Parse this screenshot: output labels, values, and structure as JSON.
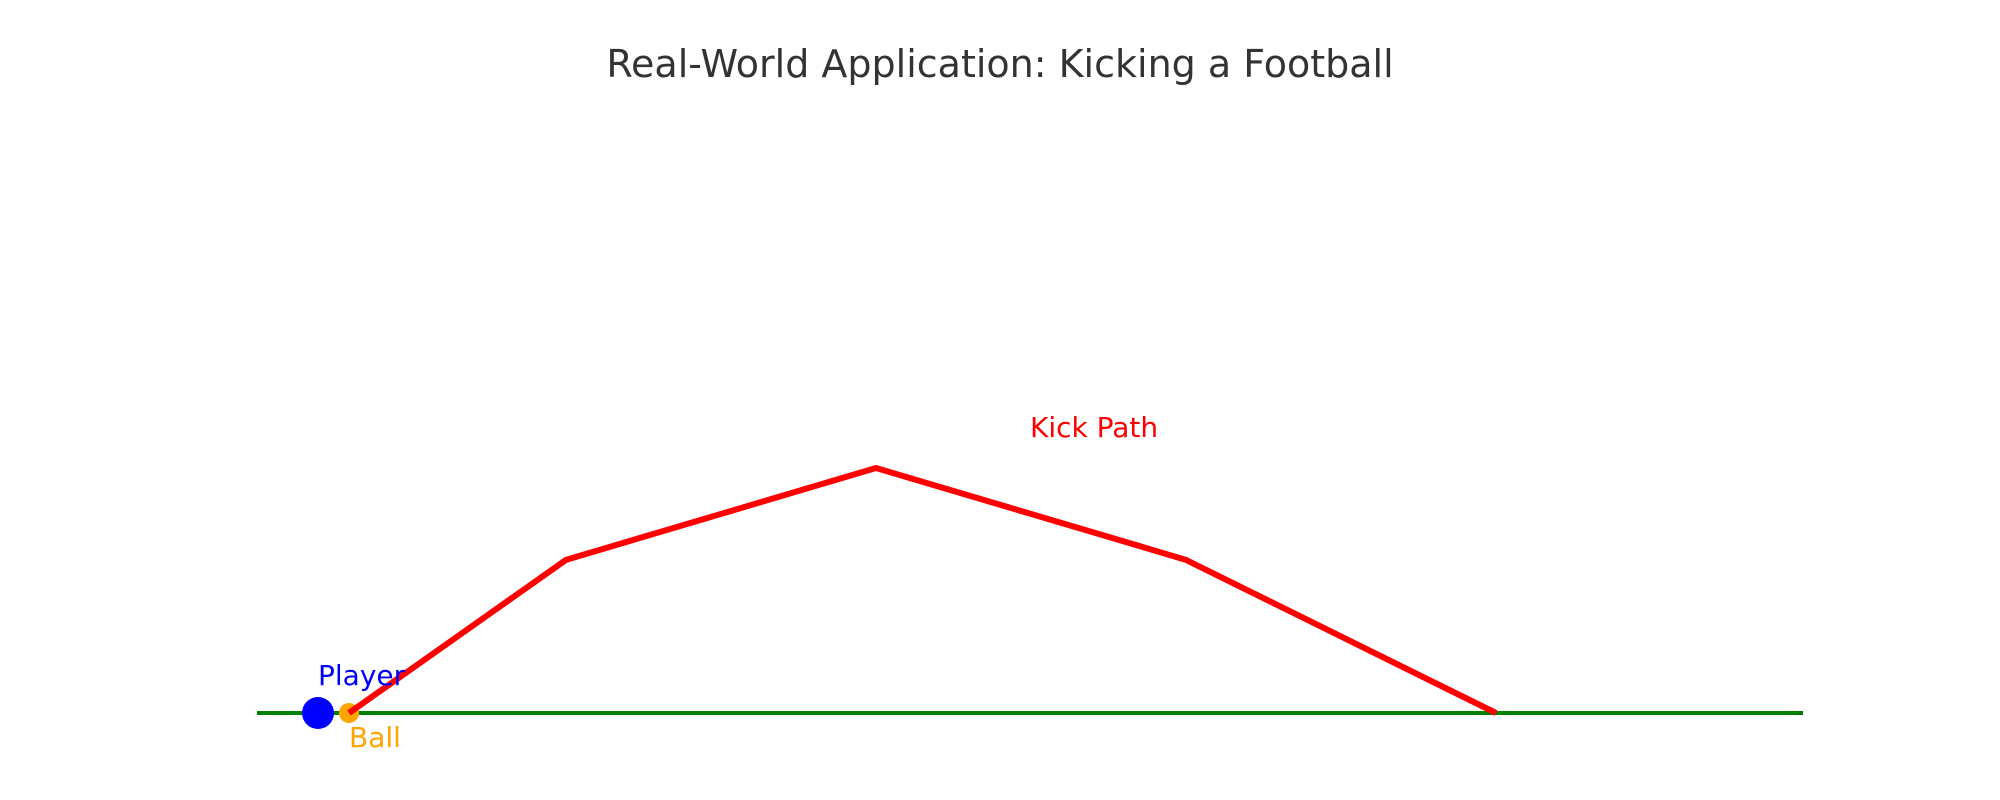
{
  "title": "Real-World Application: Kicking a Football",
  "ground": {
    "color": "#008000"
  },
  "player": {
    "label": "Player",
    "color": "#0000ff"
  },
  "ball": {
    "label": "Ball",
    "color": "#ffa500"
  },
  "kick_path": {
    "label": "Kick Path",
    "color": "#ff0000",
    "points": [
      [
        0,
        0
      ],
      [
        7,
        5
      ],
      [
        17,
        8
      ],
      [
        27,
        5
      ],
      [
        37,
        0
      ]
    ]
  }
}
